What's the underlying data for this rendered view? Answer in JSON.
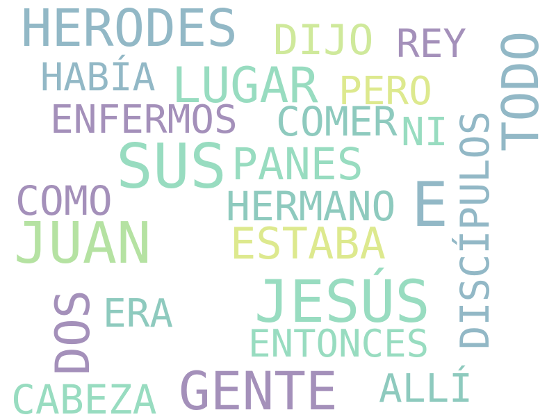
{
  "palette": {
    "blue_gray": "#92b8c6",
    "mint": "#98dcc0",
    "teal": "#8ecabe",
    "purple": "#a490ba",
    "lime": "#cfe99b",
    "pale_lime": "#dde98e",
    "green": "#b5e2a2"
  },
  "words": {
    "herodes": "HERODES",
    "dijo": "DIJO",
    "rey": "REY",
    "todo": "TODO",
    "habia": "HABÍA",
    "lugar": "LUGAR",
    "pero": "PERO",
    "discipulos": "DISCÍPULOS",
    "enfermos": "ENFERMOS",
    "comer": "COMER",
    "ni": "NI",
    "sus": "SUS",
    "panes": "PANES",
    "como": "COMO",
    "hermano": "HERMANO",
    "e": "E",
    "juan": "JUAN",
    "estaba": "ESTABA",
    "jesus": "JESÚS",
    "dos": "DOS",
    "era": "ERA",
    "entonces": "ENTONCES",
    "gente": "GENTE",
    "alli": "ALLÍ",
    "cabeza": "CABEZA"
  }
}
